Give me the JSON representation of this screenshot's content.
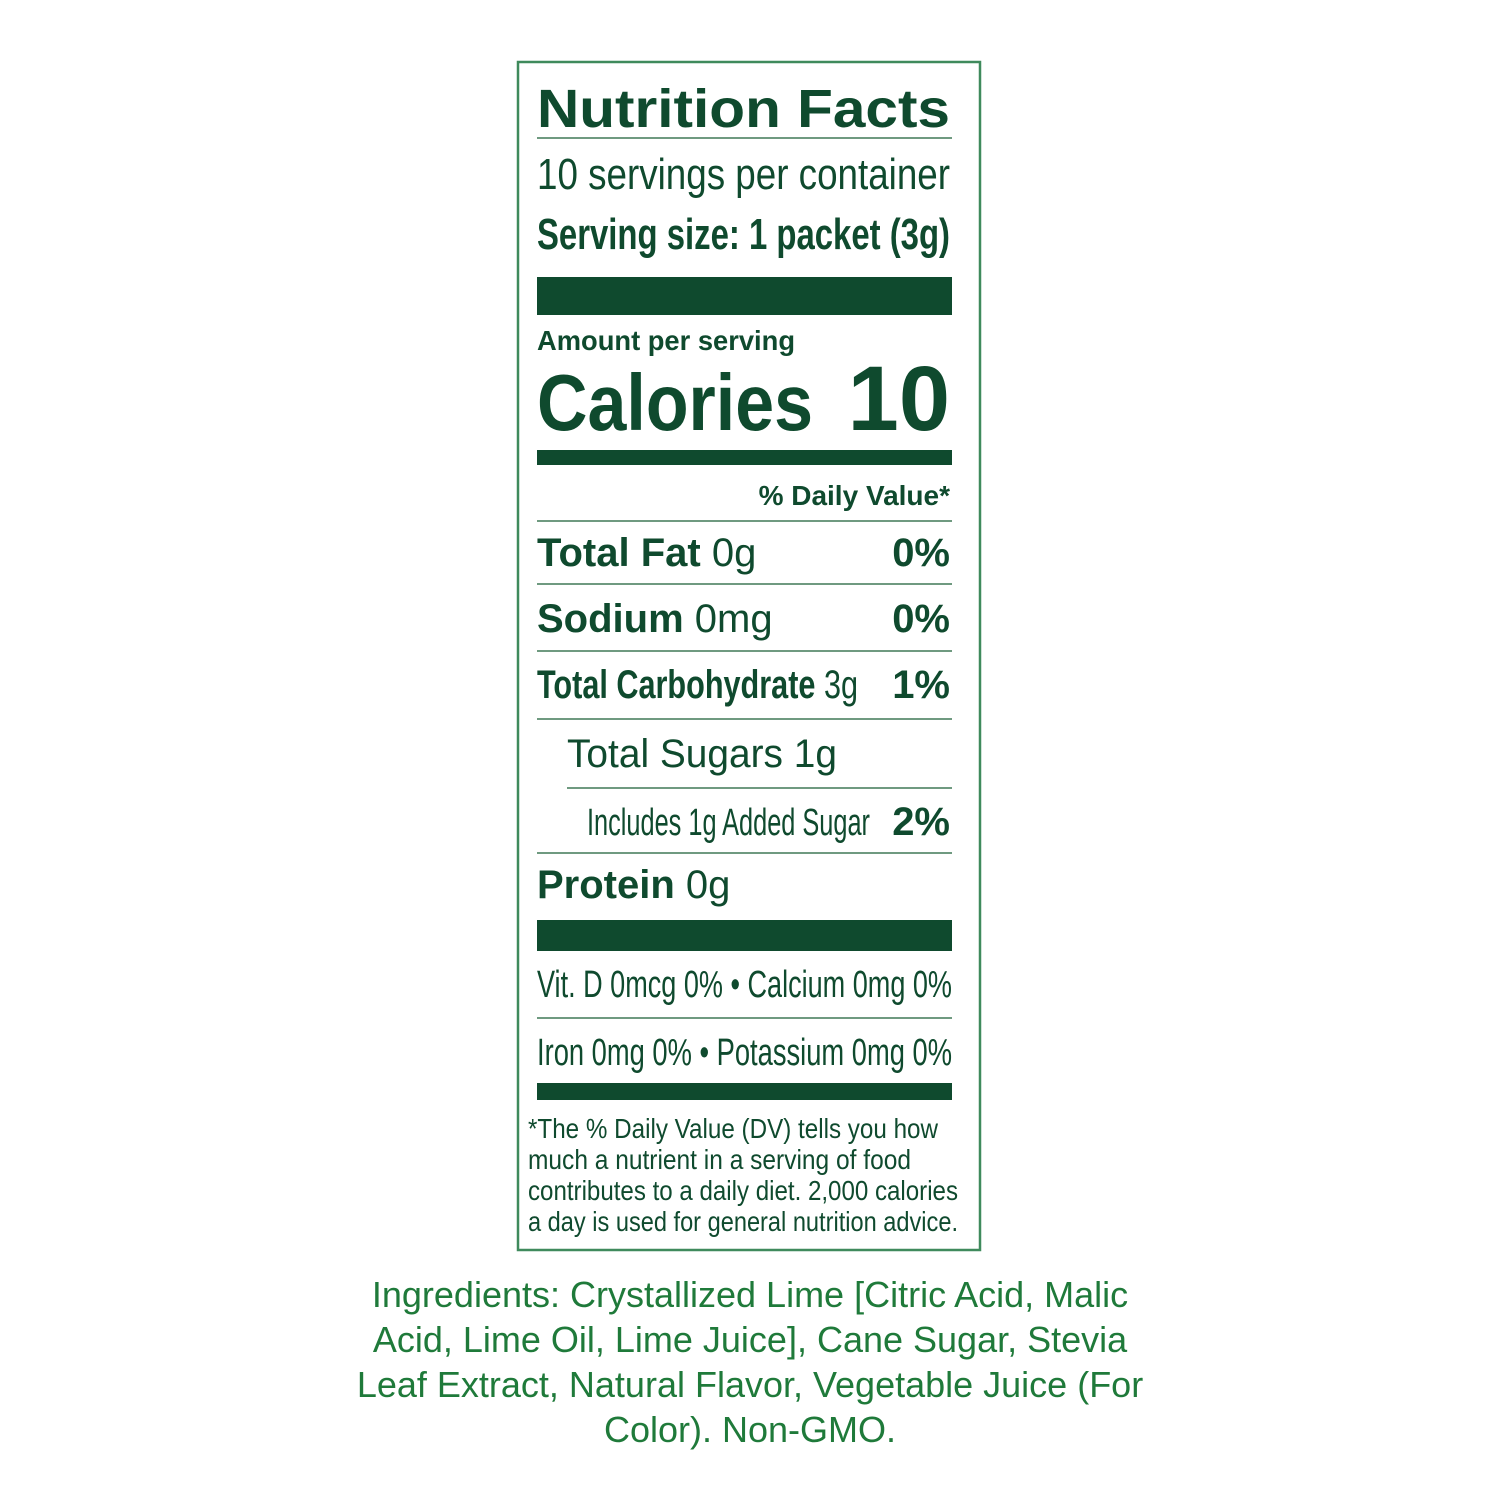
{
  "label": {
    "title": "Nutrition Facts",
    "servings": "10 servings per container",
    "serving_size": "Serving size: 1 packet (3g)",
    "amount_per_serving": "Amount per serving",
    "calories_label": "Calories",
    "calories": "10",
    "daily_value_header": "% Daily Value*",
    "rows": [
      {
        "nutrient": "Total Fat",
        "amount": "0g",
        "dv": "0%"
      },
      {
        "nutrient": "Sodium",
        "amount": "0mg",
        "dv": "0%"
      },
      {
        "nutrient": "Total Carbohydrate",
        "amount": "3g",
        "dv": "1%"
      },
      {
        "nutrient": "Total Sugars",
        "amount": "1g"
      },
      {
        "nutrient": "Includes 1g Added Sugar",
        "dv": "2%"
      },
      {
        "nutrient": "Protein",
        "amount": "0g"
      }
    ],
    "vitamins": [
      "Vit. D 0mcg 0% • Calcium 0mg 0%",
      "Iron 0mg 0% • Potassium 0mg 0%"
    ],
    "footnote": [
      "*The % Daily Value (DV) tells you how",
      "much a nutrient in a serving of food",
      "contributes to a daily diet. 2,000 calories",
      "a day is used for general nutrition advice."
    ]
  },
  "ingredients": [
    "Ingredients: Crystallized Lime [Citric Acid, Malic",
    "Acid, Lime Oil, Lime Juice], Cane Sugar, Stevia",
    "Leaf Extract, Natural Flavor, Vegetable Juice (For",
    "Color). Non-GMO."
  ]
}
